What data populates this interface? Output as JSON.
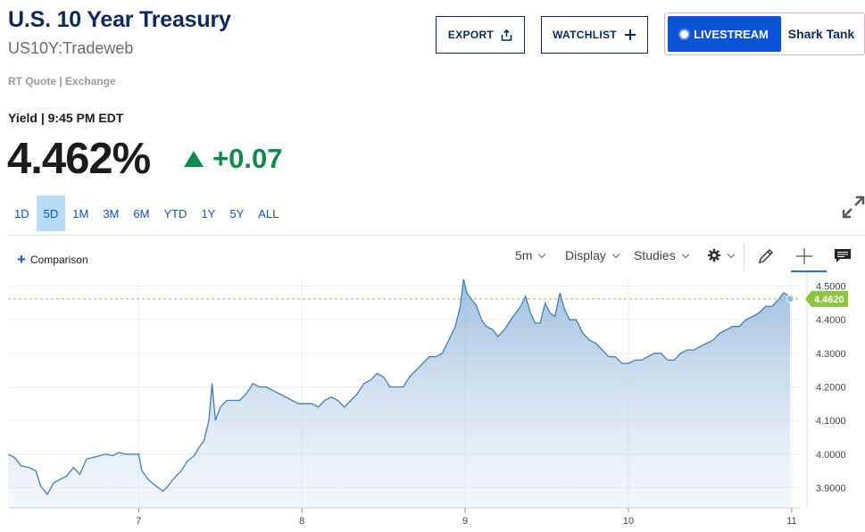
{
  "header": {
    "title": "U.S. 10 Year Treasury",
    "symbol": "US10Y:Tradeweb",
    "quote_source": "RT Quote | Exchange"
  },
  "actions": {
    "export_label": "EXPORT",
    "watchlist_label": "WATCHLIST",
    "livestream_label": "LIVESTREAM",
    "livestream_show": "Shark Tank"
  },
  "quote": {
    "yield_label": "Yield | 9:45 PM EDT",
    "price": "4.462%",
    "change": "+0.07",
    "change_direction": "up",
    "change_color": "#0e8a4f"
  },
  "ranges": [
    "1D",
    "5D",
    "1M",
    "3M",
    "6M",
    "YTD",
    "1Y",
    "5Y",
    "ALL"
  ],
  "active_range": "5D",
  "toolbar": {
    "comparison_label": "Comparison",
    "interval_label": "5m",
    "display_label": "Display",
    "studies_label": "Studies",
    "icons": [
      "gear-icon",
      "pencil-icon",
      "crosshair-icon",
      "comment-icon"
    ]
  },
  "chart_data": {
    "type": "area",
    "x_tick_labels": [
      "7",
      "8",
      "9",
      "10",
      "11"
    ],
    "y_tick_labels": [
      "4.5000",
      "4.4000",
      "4.3000",
      "4.2000",
      "4.1000",
      "4.0000",
      "3.9000"
    ],
    "ylim": [
      3.84,
      4.52
    ],
    "xlim": [
      6.2,
      11.05
    ],
    "grid": true,
    "line_color": "#3f7fb8",
    "last_value_label": "4.4620",
    "last_value_color": "#8cc63f",
    "reference_line": 4.462,
    "series": [
      {
        "points": [
          [
            6.2,
            4.0
          ],
          [
            6.24,
            3.99
          ],
          [
            6.28,
            3.965
          ],
          [
            6.33,
            3.96
          ],
          [
            6.37,
            3.95
          ],
          [
            6.4,
            3.905
          ],
          [
            6.44,
            3.88
          ],
          [
            6.48,
            3.915
          ],
          [
            6.52,
            3.925
          ],
          [
            6.56,
            3.935
          ],
          [
            6.6,
            3.96
          ],
          [
            6.64,
            3.94
          ],
          [
            6.68,
            3.985
          ],
          [
            6.72,
            3.99
          ],
          [
            6.76,
            3.995
          ],
          [
            6.8,
            4.0
          ],
          [
            6.84,
            3.995
          ],
          [
            6.88,
            4.005
          ],
          [
            6.92,
            4.0
          ],
          [
            7.0,
            4.0
          ],
          [
            7.02,
            3.95
          ],
          [
            7.05,
            3.93
          ],
          [
            7.08,
            3.915
          ],
          [
            7.12,
            3.9
          ],
          [
            7.15,
            3.89
          ],
          [
            7.18,
            3.905
          ],
          [
            7.22,
            3.93
          ],
          [
            7.26,
            3.95
          ],
          [
            7.3,
            3.98
          ],
          [
            7.34,
            3.995
          ],
          [
            7.37,
            4.02
          ],
          [
            7.4,
            4.04
          ],
          [
            7.43,
            4.1
          ],
          [
            7.45,
            4.21
          ],
          [
            7.47,
            4.1
          ],
          [
            7.5,
            4.14
          ],
          [
            7.54,
            4.16
          ],
          [
            7.58,
            4.16
          ],
          [
            7.62,
            4.16
          ],
          [
            7.66,
            4.18
          ],
          [
            7.7,
            4.21
          ],
          [
            7.74,
            4.2
          ],
          [
            7.78,
            4.2
          ],
          [
            7.82,
            4.19
          ],
          [
            7.86,
            4.18
          ],
          [
            7.9,
            4.17
          ],
          [
            7.94,
            4.16
          ],
          [
            7.98,
            4.15
          ],
          [
            8.02,
            4.15
          ],
          [
            8.06,
            4.15
          ],
          [
            8.1,
            4.14
          ],
          [
            8.14,
            4.16
          ],
          [
            8.18,
            4.17
          ],
          [
            8.22,
            4.16
          ],
          [
            8.26,
            4.14
          ],
          [
            8.3,
            4.16
          ],
          [
            8.34,
            4.18
          ],
          [
            8.38,
            4.21
          ],
          [
            8.42,
            4.22
          ],
          [
            8.46,
            4.24
          ],
          [
            8.5,
            4.23
          ],
          [
            8.54,
            4.2
          ],
          [
            8.58,
            4.2
          ],
          [
            8.62,
            4.2
          ],
          [
            8.66,
            4.23
          ],
          [
            8.7,
            4.25
          ],
          [
            8.74,
            4.27
          ],
          [
            8.78,
            4.29
          ],
          [
            8.82,
            4.29
          ],
          [
            8.86,
            4.3
          ],
          [
            8.9,
            4.34
          ],
          [
            8.94,
            4.38
          ],
          [
            8.97,
            4.44
          ],
          [
            8.99,
            4.52
          ],
          [
            9.01,
            4.48
          ],
          [
            9.04,
            4.46
          ],
          [
            9.07,
            4.44
          ],
          [
            9.1,
            4.4
          ],
          [
            9.13,
            4.38
          ],
          [
            9.17,
            4.37
          ],
          [
            9.2,
            4.35
          ],
          [
            9.24,
            4.37
          ],
          [
            9.28,
            4.4
          ],
          [
            9.31,
            4.42
          ],
          [
            9.34,
            4.44
          ],
          [
            9.37,
            4.47
          ],
          [
            9.4,
            4.42
          ],
          [
            9.43,
            4.39
          ],
          [
            9.46,
            4.39
          ],
          [
            9.49,
            4.45
          ],
          [
            9.52,
            4.42
          ],
          [
            9.55,
            4.41
          ],
          [
            9.58,
            4.48
          ],
          [
            9.61,
            4.43
          ],
          [
            9.64,
            4.4
          ],
          [
            9.68,
            4.4
          ],
          [
            9.72,
            4.36
          ],
          [
            9.76,
            4.34
          ],
          [
            9.8,
            4.33
          ],
          [
            9.84,
            4.31
          ],
          [
            9.88,
            4.29
          ],
          [
            9.92,
            4.29
          ],
          [
            9.96,
            4.27
          ],
          [
            10.0,
            4.27
          ],
          [
            10.04,
            4.28
          ],
          [
            10.08,
            4.28
          ],
          [
            10.12,
            4.29
          ],
          [
            10.16,
            4.3
          ],
          [
            10.2,
            4.3
          ],
          [
            10.24,
            4.28
          ],
          [
            10.28,
            4.28
          ],
          [
            10.32,
            4.3
          ],
          [
            10.36,
            4.31
          ],
          [
            10.4,
            4.31
          ],
          [
            10.44,
            4.32
          ],
          [
            10.48,
            4.33
          ],
          [
            10.52,
            4.34
          ],
          [
            10.56,
            4.36
          ],
          [
            10.6,
            4.37
          ],
          [
            10.64,
            4.38
          ],
          [
            10.68,
            4.38
          ],
          [
            10.72,
            4.4
          ],
          [
            10.76,
            4.41
          ],
          [
            10.8,
            4.42
          ],
          [
            10.84,
            4.44
          ],
          [
            10.88,
            4.44
          ],
          [
            10.92,
            4.46
          ],
          [
            10.95,
            4.48
          ],
          [
            10.97,
            4.475
          ],
          [
            10.99,
            4.462
          ]
        ]
      }
    ]
  }
}
